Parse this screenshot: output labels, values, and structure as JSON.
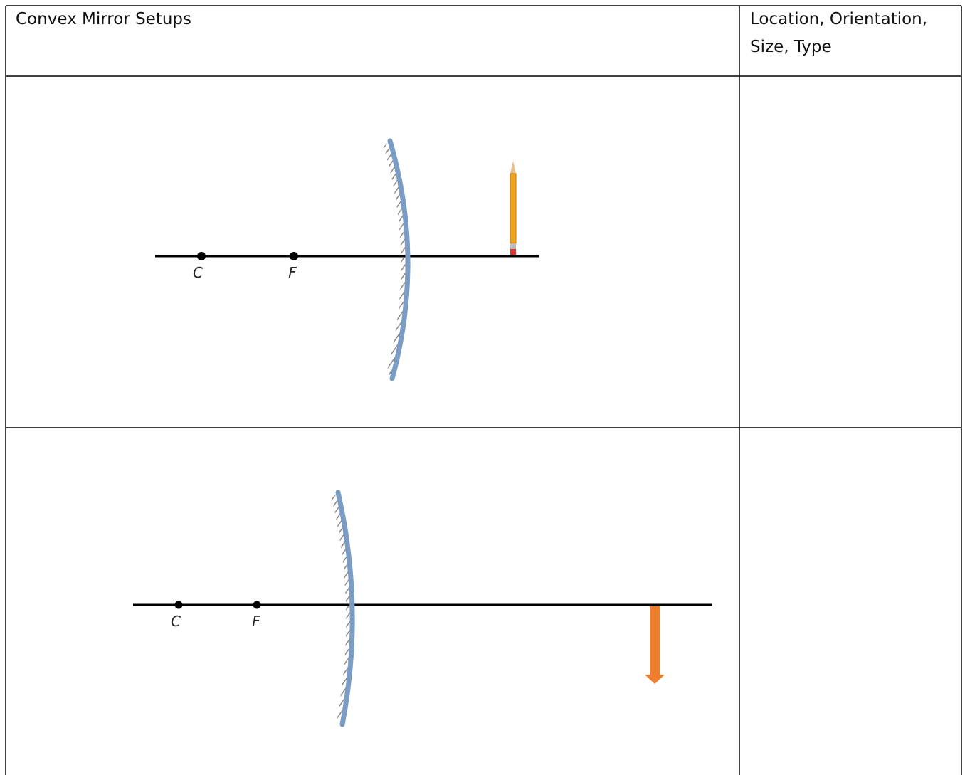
{
  "table": {
    "header": [
      "Convex Mirror Setups",
      "Location, Orientation, Size, Type"
    ],
    "rows": [
      {
        "diagram": {
          "labels": [
            "C",
            "F"
          ]
        }
      },
      {
        "diagram": {
          "labels": [
            "C",
            "F"
          ]
        }
      }
    ]
  }
}
